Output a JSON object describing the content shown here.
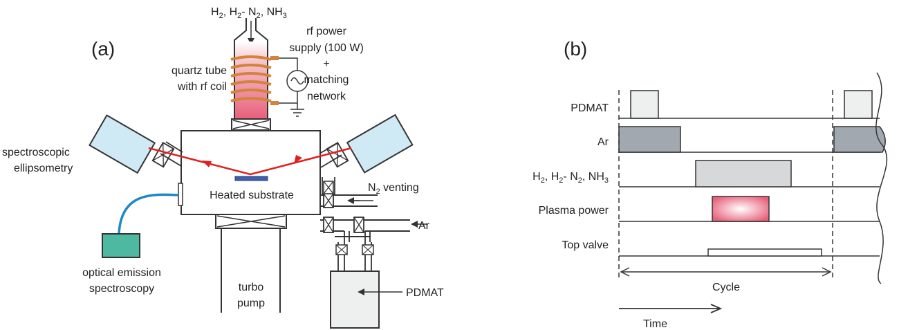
{
  "panels": {
    "a": "(a)",
    "b": "(b)"
  },
  "diagram_a": {
    "gas_inlet": {
      "base": "H",
      "s1": "2",
      "sep1": ", H",
      "s2": "2",
      "mid": "- N",
      "s3": "2",
      "sep2": ", NH",
      "s4": "3"
    },
    "rf_power": [
      "rf power",
      "supply (100 W)",
      "+",
      "matching",
      "network"
    ],
    "quartz_tube": [
      "quartz tube",
      "with rf coil"
    ],
    "spectroscopic": [
      "spectroscopic",
      "ellipsometry"
    ],
    "n2_venting": {
      "base": "N",
      "sub": "2",
      "rest": " venting"
    },
    "ar": "Ar",
    "heated_substrate": "Heated substrate",
    "oes": [
      "optical emission",
      "spectroscopy"
    ],
    "turbo": [
      "turbo",
      "pump"
    ],
    "pdmat": "PDMAT"
  },
  "diagram_b": {
    "rows": [
      {
        "label": "PDMAT"
      },
      {
        "label": "Ar"
      },
      {
        "label_parts": {
          "base": "H",
          "s1": "2",
          "sep1": ", H",
          "s2": "2",
          "mid": "- N",
          "s3": "2",
          "sep2": ", NH",
          "s4": "3"
        }
      },
      {
        "label": "Plasma power"
      },
      {
        "label": "Top valve"
      }
    ],
    "cycle": "Cycle",
    "time": "Time"
  },
  "colors": {
    "ellipsometer": "#cfe9f5",
    "oes_box": "#4fb8a0",
    "plasma": "#e8607a",
    "laser": "#e02020",
    "coil": "#d2843a",
    "fiber": "#1e88c8",
    "ar_pulse": "#a2a8b0",
    "gas_pulse": "#d6d8da",
    "pdmat_pulse": "#eef0ef"
  }
}
